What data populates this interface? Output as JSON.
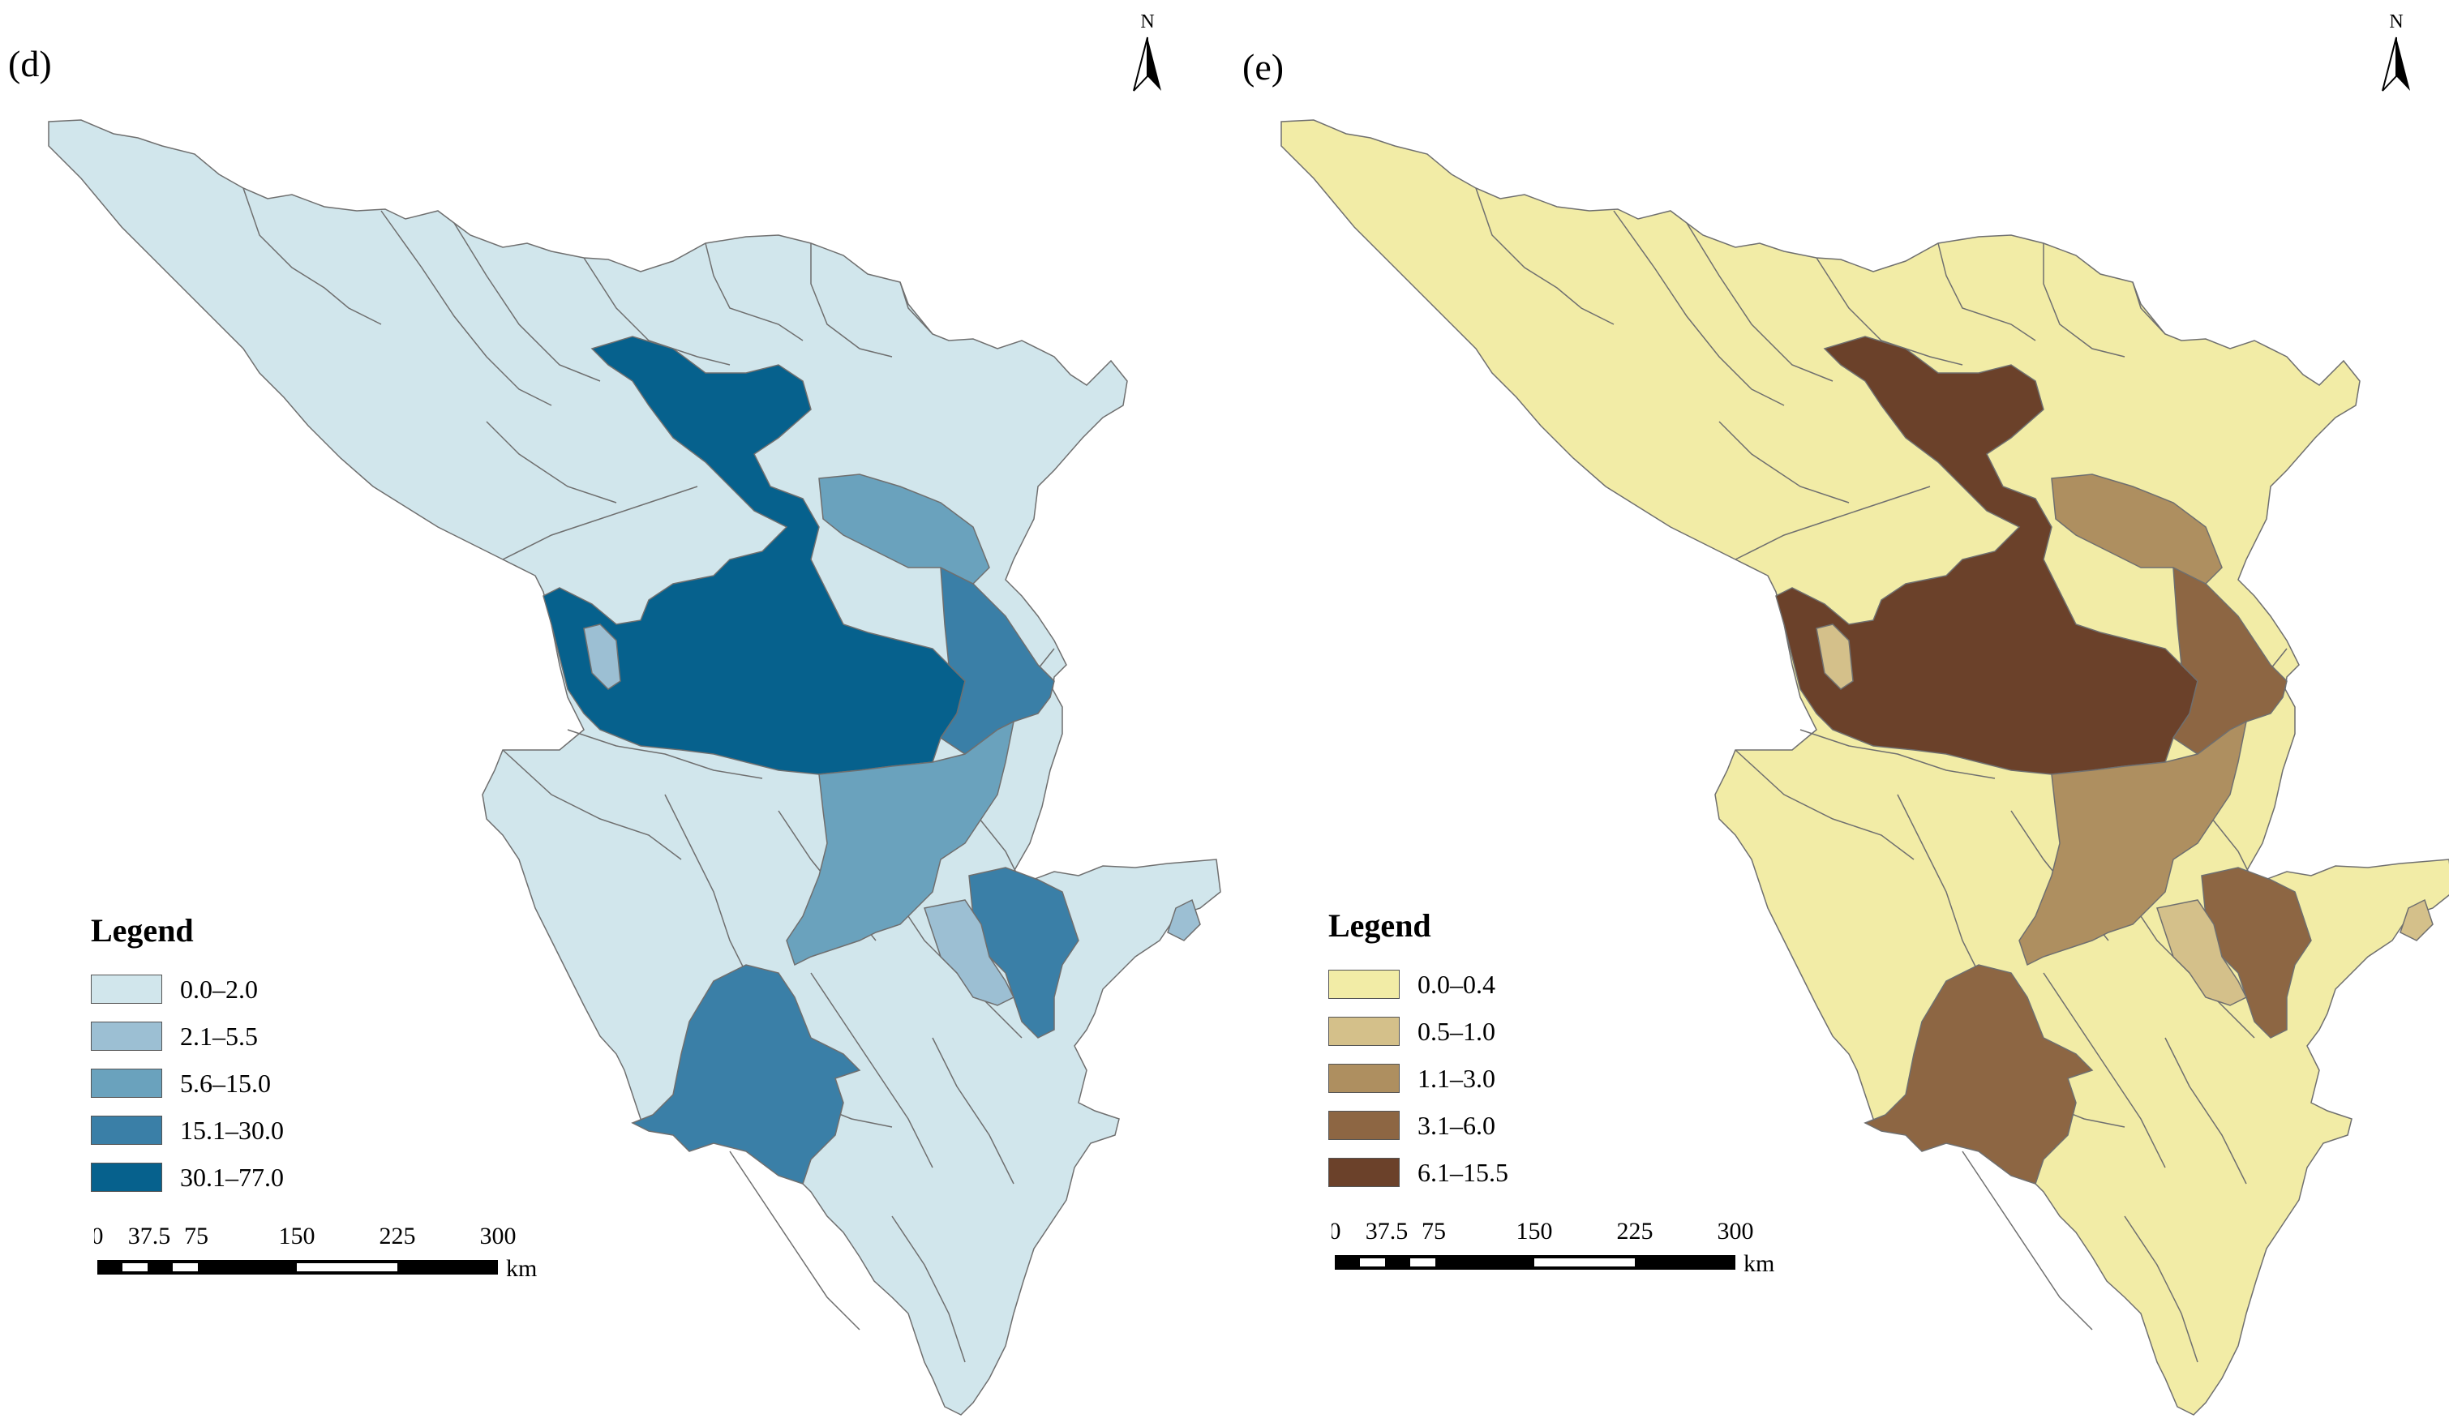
{
  "panels": [
    {
      "id": "d",
      "label": "(d)",
      "north_label": "N",
      "legend": {
        "title": "Legend",
        "classes": [
          {
            "label": "0.0–2.0",
            "color": "#d1e6ec"
          },
          {
            "label": "2.1–5.5",
            "color": "#9cbfd3"
          },
          {
            "label": "5.6–15.0",
            "color": "#6aa2bd"
          },
          {
            "label": "15.1–30.0",
            "color": "#3a7fa7"
          },
          {
            "label": "30.1–77.0",
            "color": "#06618d"
          }
        ]
      },
      "scale": {
        "ticks": [
          "0",
          "37.5",
          "75",
          "150",
          "225",
          "300"
        ],
        "unit": "km"
      }
    },
    {
      "id": "e",
      "label": "(e)",
      "north_label": "N",
      "legend": {
        "title": "Legend",
        "classes": [
          {
            "label": "0.0–0.4",
            "color": "#f2eca6"
          },
          {
            "label": "0.5–1.0",
            "color": "#d4c08a"
          },
          {
            "label": "1.1–3.0",
            "color": "#ae8f60"
          },
          {
            "label": "3.1–6.0",
            "color": "#8d6643"
          },
          {
            "label": "6.1–15.5",
            "color": "#6b412a"
          }
        ]
      },
      "scale": {
        "ticks": [
          "0",
          "37.5",
          "75",
          "150",
          "225",
          "300"
        ],
        "unit": "km"
      }
    }
  ]
}
